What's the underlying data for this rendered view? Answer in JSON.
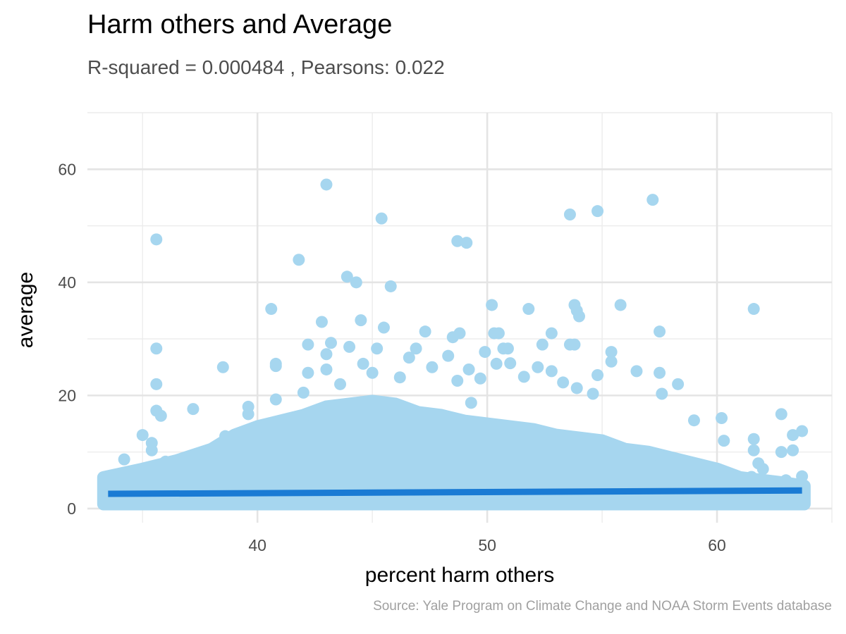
{
  "chart_data": {
    "type": "scatter",
    "title": "Harm others and Average",
    "subtitle": "R-squared =  0.000484 , Pearsons: 0.022",
    "caption": "Source: Yale Program on Climate Change and NOAA Storm Events database",
    "xlabel": "percent harm others",
    "ylabel": "average",
    "xlim": [
      32.6,
      65.0
    ],
    "ylim": [
      -2.5,
      70.0
    ],
    "x_ticks": [
      40,
      50,
      60
    ],
    "y_ticks": [
      0,
      20,
      40,
      60
    ],
    "grid": true,
    "point_color": "#a6d6ef",
    "fit_color": "#1a7bd4",
    "fit_line": {
      "x": [
        33.5,
        63.7
      ],
      "y": [
        2.6,
        3.2
      ]
    },
    "points": [
      [
        35.6,
        47.6
      ],
      [
        35.6,
        28.3
      ],
      [
        35.6,
        22.0
      ],
      [
        35.6,
        17.3
      ],
      [
        35.8,
        16.4
      ],
      [
        37.2,
        17.6
      ],
      [
        38.5,
        25.0
      ],
      [
        40.6,
        35.3
      ],
      [
        40.8,
        25.6
      ],
      [
        40.8,
        25.2
      ],
      [
        40.8,
        19.3
      ],
      [
        41.8,
        44.0
      ],
      [
        42.0,
        20.5
      ],
      [
        42.2,
        24.0
      ],
      [
        42.2,
        29.0
      ],
      [
        42.8,
        33.0
      ],
      [
        43.0,
        57.3
      ],
      [
        43.0,
        27.3
      ],
      [
        43.0,
        24.6
      ],
      [
        43.2,
        29.3
      ],
      [
        43.6,
        22.0
      ],
      [
        43.9,
        41.0
      ],
      [
        44.0,
        28.6
      ],
      [
        44.3,
        40.0
      ],
      [
        44.5,
        33.3
      ],
      [
        44.6,
        25.6
      ],
      [
        45.0,
        24.0
      ],
      [
        45.2,
        28.3
      ],
      [
        45.4,
        51.3
      ],
      [
        45.5,
        32.0
      ],
      [
        45.8,
        39.3
      ],
      [
        46.2,
        23.2
      ],
      [
        46.6,
        26.7
      ],
      [
        46.9,
        28.3
      ],
      [
        47.3,
        31.3
      ],
      [
        47.6,
        25.0
      ],
      [
        48.3,
        27.0
      ],
      [
        48.5,
        30.3
      ],
      [
        48.7,
        47.3
      ],
      [
        48.8,
        31.0
      ],
      [
        48.7,
        22.6
      ],
      [
        49.1,
        47.0
      ],
      [
        49.2,
        24.6
      ],
      [
        49.3,
        18.7
      ],
      [
        49.7,
        23.0
      ],
      [
        49.9,
        27.7
      ],
      [
        50.2,
        36.0
      ],
      [
        50.3,
        31.0
      ],
      [
        50.4,
        25.6
      ],
      [
        50.5,
        31.0
      ],
      [
        50.7,
        28.3
      ],
      [
        50.9,
        28.3
      ],
      [
        51.0,
        25.7
      ],
      [
        51.6,
        23.3
      ],
      [
        51.8,
        35.3
      ],
      [
        52.2,
        25.0
      ],
      [
        52.4,
        29.0
      ],
      [
        52.8,
        31.0
      ],
      [
        52.8,
        24.3
      ],
      [
        53.3,
        22.3
      ],
      [
        53.6,
        52.0
      ],
      [
        53.6,
        29.0
      ],
      [
        53.8,
        29.0
      ],
      [
        53.8,
        36.0
      ],
      [
        53.9,
        35.0
      ],
      [
        54.0,
        34.0
      ],
      [
        53.9,
        21.3
      ],
      [
        54.6,
        20.3
      ],
      [
        54.8,
        52.6
      ],
      [
        54.8,
        23.6
      ],
      [
        55.4,
        27.7
      ],
      [
        55.4,
        26.0
      ],
      [
        55.8,
        36.0
      ],
      [
        56.5,
        24.3
      ],
      [
        57.2,
        54.6
      ],
      [
        57.5,
        31.3
      ],
      [
        57.5,
        24.0
      ],
      [
        57.6,
        20.3
      ],
      [
        58.3,
        22.0
      ],
      [
        59.0,
        15.6
      ],
      [
        60.2,
        16.0
      ],
      [
        60.3,
        12.0
      ],
      [
        61.6,
        35.3
      ],
      [
        61.6,
        12.3
      ],
      [
        61.6,
        10.3
      ],
      [
        61.8,
        8.0
      ],
      [
        62.8,
        16.7
      ],
      [
        62.8,
        10.0
      ],
      [
        63.3,
        13.0
      ],
      [
        63.3,
        10.3
      ],
      [
        63.7,
        13.7
      ],
      [
        63.7,
        5.7
      ],
      [
        33.5,
        5.0
      ],
      [
        33.5,
        3.0
      ],
      [
        33.5,
        1.0
      ],
      [
        34.2,
        8.7
      ],
      [
        34.2,
        5.6
      ],
      [
        34.2,
        1.0
      ],
      [
        35.0,
        13.0
      ],
      [
        35.4,
        11.6
      ],
      [
        35.4,
        10.3
      ],
      [
        36.0,
        8.3
      ],
      [
        36.9,
        8.3
      ],
      [
        38.6,
        12.8
      ],
      [
        39.6,
        18.0
      ],
      [
        39.6,
        16.7
      ],
      [
        61.5,
        5.6
      ],
      [
        62.0,
        7.0
      ],
      [
        63.0,
        5.0
      ],
      [
        63.7,
        2.0
      ],
      [
        63.7,
        1.0
      ],
      [
        63.5,
        3.5
      ]
    ]
  }
}
